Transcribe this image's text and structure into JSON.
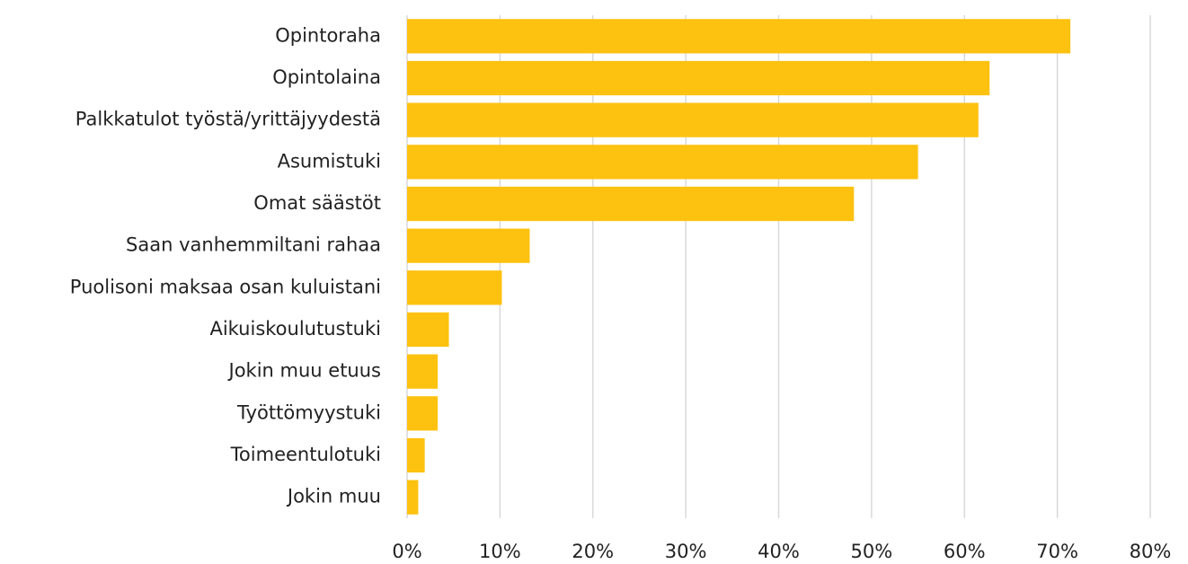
{
  "chart_data": {
    "type": "barh",
    "categories": [
      "Opintoraha",
      "Opintolaina",
      "Palkkatulot työstä/yrittäjyydestä",
      "Asumistuki",
      "Omat säästöt",
      "Saan vanhemmiltani rahaa",
      "Puolisoni maksaa osan kuluistani",
      "Aikuiskoulutustuki",
      "Jokin muu etuus",
      "Työttömyystuki",
      "Toimeentulotuki",
      "Jokin muu"
    ],
    "values": [
      71.4,
      62.7,
      61.5,
      55.0,
      48.1,
      13.2,
      10.2,
      4.5,
      3.3,
      3.3,
      1.9,
      1.2
    ],
    "color": "#fdc210",
    "xlim": [
      0,
      80
    ],
    "xticks": [
      {
        "value": 0,
        "label": "0%"
      },
      {
        "value": 10,
        "label": "10%"
      },
      {
        "value": 20,
        "label": "20%"
      },
      {
        "value": 30,
        "label": "30%"
      },
      {
        "value": 40,
        "label": "40%"
      },
      {
        "value": 50,
        "label": "50%"
      },
      {
        "value": 60,
        "label": "60%"
      },
      {
        "value": 70,
        "label": "70%"
      },
      {
        "value": 80,
        "label": "80%"
      }
    ],
    "grid": true
  }
}
